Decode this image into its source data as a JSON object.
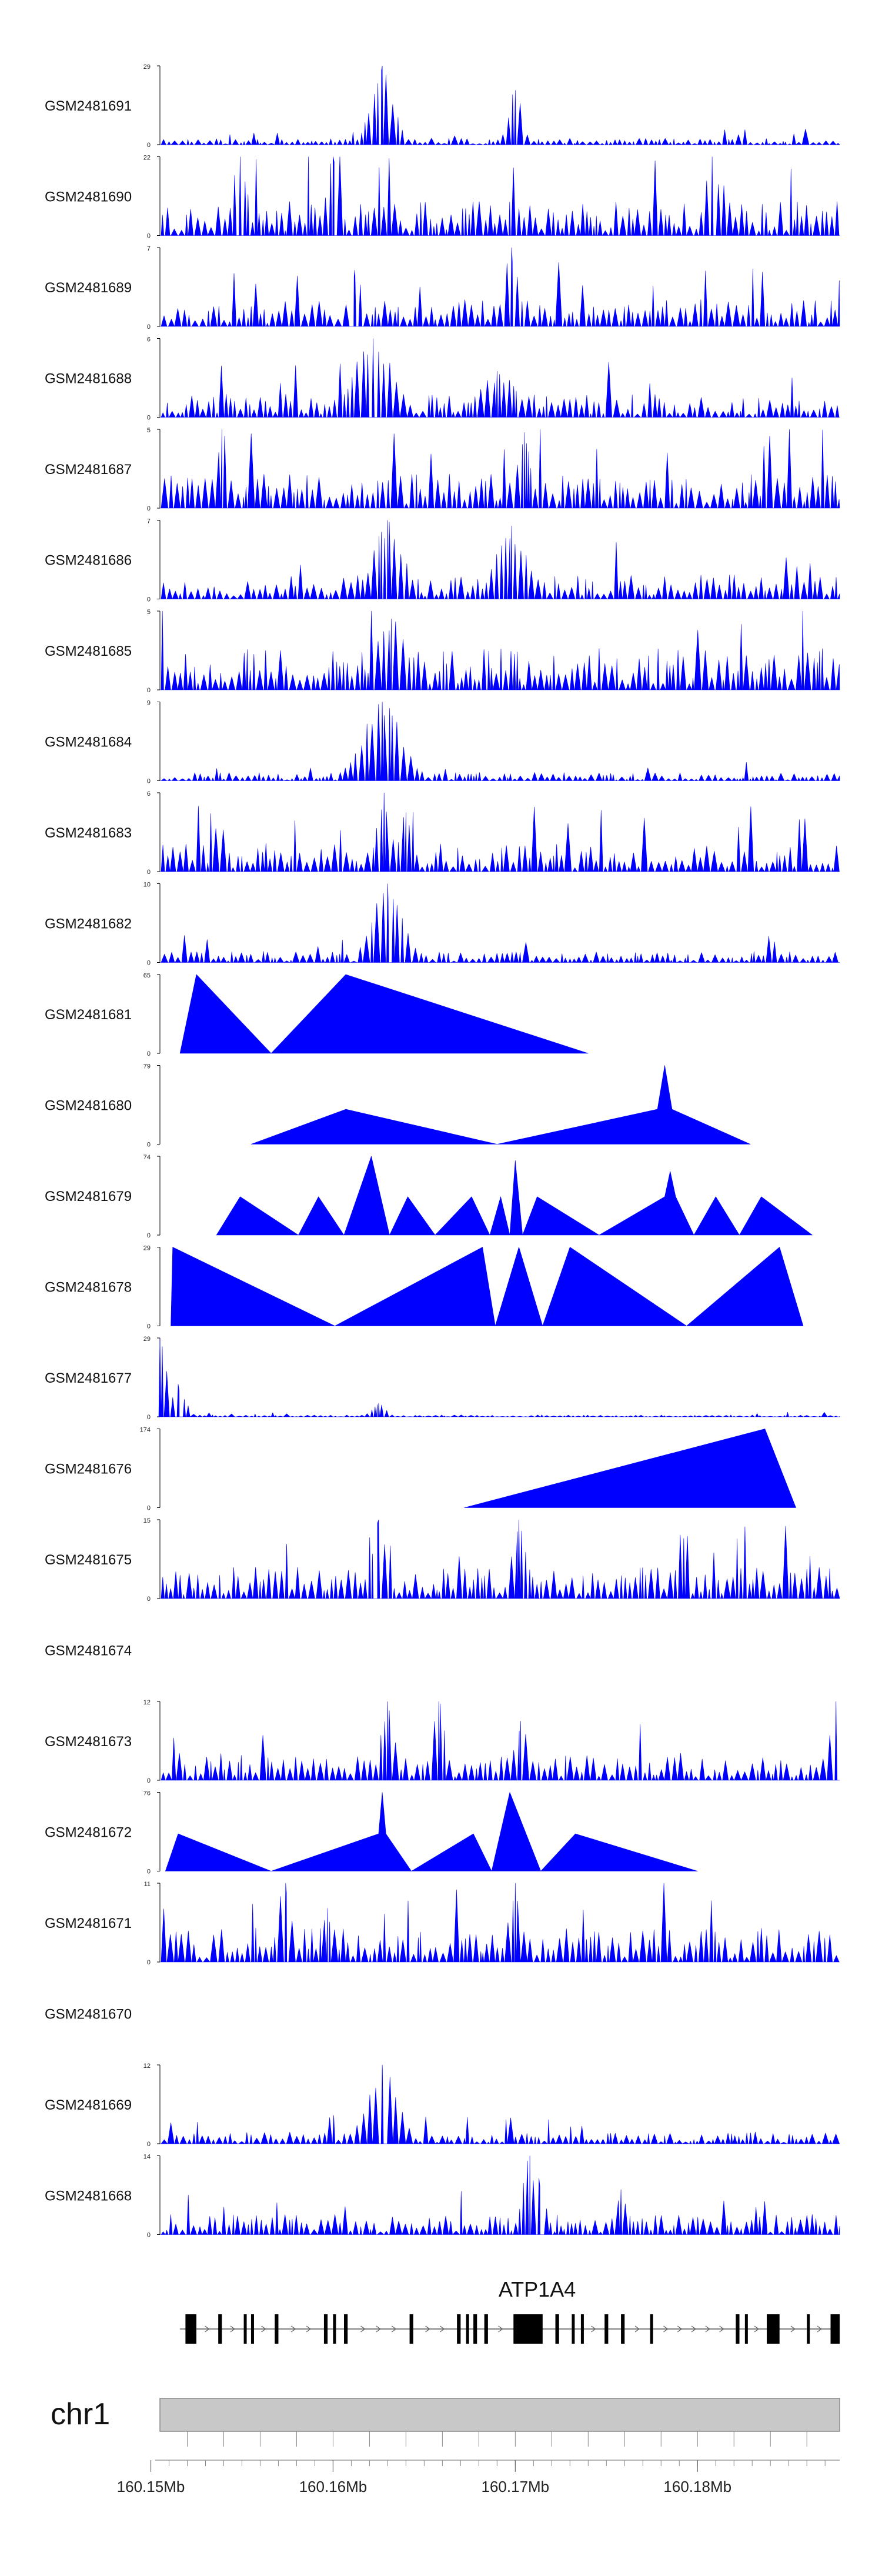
{
  "chart_data": {
    "type": "area",
    "title": "",
    "chromosome": "chr1",
    "x_range": [
      160.1505,
      160.1878
    ],
    "x_unit": "Mb",
    "x_ticks": [
      {
        "value": 160.15,
        "label": "160.15Mb"
      },
      {
        "value": 160.16,
        "label": "160.16Mb"
      },
      {
        "value": 160.17,
        "label": "160.17Mb"
      },
      {
        "value": 160.18,
        "label": "160.18Mb"
      }
    ],
    "track_color": "#0000ff",
    "gene": {
      "name": "ATP1A4",
      "strand": "+",
      "start": 160.1516,
      "end": 160.1878,
      "exons": [
        [
          160.1519,
          160.1525
        ],
        [
          160.1537,
          160.1539
        ],
        [
          160.1551,
          160.1552
        ],
        [
          160.1555,
          160.1556
        ],
        [
          160.1568,
          160.157
        ],
        [
          160.1595,
          160.1597
        ],
        [
          160.16,
          160.1601
        ],
        [
          160.1606,
          160.1608
        ],
        [
          160.1642,
          160.1644
        ],
        [
          160.1668,
          160.167
        ],
        [
          160.1673,
          160.1674
        ],
        [
          160.1677,
          160.1679
        ],
        [
          160.1683,
          160.1685
        ],
        [
          160.1699,
          160.1715
        ],
        [
          160.1722,
          160.1724
        ],
        [
          160.1731,
          160.1732
        ],
        [
          160.1736,
          160.1737
        ],
        [
          160.1749,
          160.1751
        ],
        [
          160.1758,
          160.176
        ],
        [
          160.1774,
          160.1775
        ],
        [
          160.1821,
          160.1823
        ],
        [
          160.1826,
          160.1827
        ],
        [
          160.1838,
          160.1845
        ],
        [
          160.186,
          160.1861
        ],
        [
          160.1873,
          160.1878
        ]
      ]
    },
    "tracks": [
      {
        "name": "GSM2481691",
        "ymax": 29,
        "style": "dense",
        "base": 2,
        "peaks": [
          [
            160.1627,
            29,
            2
          ],
          [
            160.17,
            20,
            1
          ]
        ],
        "seed": 1
      },
      {
        "name": "GSM2481690",
        "ymax": 22,
        "style": "dense",
        "base": 8,
        "peaks": [
          [
            160.1549,
            22,
            1
          ],
          [
            160.16,
            22,
            1
          ],
          [
            160.1808,
            22,
            1
          ]
        ],
        "seed": 2
      },
      {
        "name": "GSM2481689",
        "ymax": 7,
        "style": "dense",
        "base": 2,
        "peaks": [
          [
            160.1698,
            7,
            1
          ],
          [
            160.1612,
            5,
            1
          ]
        ],
        "seed": 3
      },
      {
        "name": "GSM2481688",
        "ymax": 6,
        "style": "dense",
        "base": 1.5,
        "peaks": [
          [
            160.1622,
            6,
            4
          ],
          [
            160.169,
            3.5,
            4
          ]
        ],
        "seed": 4
      },
      {
        "name": "GSM2481687",
        "ymax": 5,
        "style": "dense",
        "base": 1.8,
        "peaks": [
          [
            160.1539,
            5,
            1
          ],
          [
            160.1705,
            4.8,
            1
          ]
        ],
        "seed": 5
      },
      {
        "name": "GSM2481686",
        "ymax": 7,
        "style": "dense",
        "base": 1.8,
        "peaks": [
          [
            160.163,
            7,
            3
          ],
          [
            160.1698,
            6.5,
            3
          ]
        ],
        "seed": 6
      },
      {
        "name": "GSM2481685",
        "ymax": 5,
        "style": "dense",
        "base": 2.2,
        "peaks": [
          [
            160.1632,
            4.5,
            3
          ]
        ],
        "seed": 7
      },
      {
        "name": "GSM2481684",
        "ymax": 9,
        "style": "dense",
        "base": 0.8,
        "peaks": [
          [
            160.1627,
            9,
            4
          ]
        ],
        "seed": 8
      },
      {
        "name": "GSM2481683",
        "ymax": 6,
        "style": "dense",
        "base": 1.8,
        "peaks": [
          [
            160.1628,
            6,
            1
          ],
          [
            160.164,
            4.5,
            1
          ]
        ],
        "seed": 9
      },
      {
        "name": "GSM2481682",
        "ymax": 10,
        "style": "dense",
        "base": 1.2,
        "peaks": [
          [
            160.163,
            10,
            3
          ]
        ],
        "seed": 10
      },
      {
        "name": "GSM2481681",
        "ymax": 65,
        "style": "sparse",
        "vertices": [
          [
            160.1516,
            0
          ],
          [
            160.1525,
            65
          ],
          [
            160.1566,
            0
          ],
          [
            160.1607,
            65
          ],
          [
            160.174,
            0
          ]
        ]
      },
      {
        "name": "GSM2481680",
        "ymax": 79,
        "style": "sparse",
        "vertices": [
          [
            160.1555,
            0
          ],
          [
            160.1607,
            35
          ],
          [
            160.169,
            0
          ],
          [
            160.1778,
            35
          ],
          [
            160.1782,
            79
          ],
          [
            160.1786,
            35
          ],
          [
            160.1829,
            0
          ]
        ]
      },
      {
        "name": "GSM2481679",
        "ymax": 74,
        "style": "sparse",
        "vertices": [
          [
            160.1536,
            0
          ],
          [
            160.1549,
            36
          ],
          [
            160.1581,
            0
          ],
          [
            160.1592,
            36
          ],
          [
            160.1606,
            0
          ],
          [
            160.1621,
            74
          ],
          [
            160.1631,
            0
          ],
          [
            160.1641,
            36
          ],
          [
            160.1656,
            0
          ],
          [
            160.1676,
            36
          ],
          [
            160.1686,
            0
          ],
          [
            160.1692,
            36
          ],
          [
            160.1697,
            0
          ],
          [
            160.17,
            70
          ],
          [
            160.1704,
            0
          ],
          [
            160.1712,
            36
          ],
          [
            160.1746,
            0
          ],
          [
            160.1782,
            36
          ],
          [
            160.1785,
            60
          ],
          [
            160.1788,
            36
          ],
          [
            160.1798,
            0
          ],
          [
            160.181,
            36
          ],
          [
            160.1823,
            0
          ],
          [
            160.1835,
            36
          ],
          [
            160.1863,
            0
          ]
        ]
      },
      {
        "name": "GSM2481678",
        "ymax": 29,
        "style": "sparse",
        "vertices": [
          [
            160.1511,
            0
          ],
          [
            160.1512,
            29
          ],
          [
            160.1601,
            0
          ],
          [
            160.1682,
            29
          ],
          [
            160.1689,
            0
          ],
          [
            160.1702,
            29
          ],
          [
            160.1715,
            0
          ],
          [
            160.173,
            29
          ],
          [
            160.1794,
            0
          ],
          [
            160.1845,
            29
          ],
          [
            160.1858,
            0
          ]
        ]
      },
      {
        "name": "GSM2481677",
        "ymax": 29,
        "style": "dense",
        "base": 0.6,
        "peaks": [
          [
            160.1505,
            29,
            1
          ],
          [
            160.1515,
            12,
            1
          ],
          [
            160.1625,
            5,
            1
          ]
        ],
        "seed": 17
      },
      {
        "name": "GSM2481676",
        "ymax": 174,
        "style": "sparse",
        "vertices": [
          [
            160.1672,
            0
          ],
          [
            160.1837,
            174
          ],
          [
            160.1854,
            0
          ]
        ]
      },
      {
        "name": "GSM2481675",
        "ymax": 15,
        "style": "dense",
        "base": 5,
        "peaks": [
          [
            160.1625,
            15,
            1
          ],
          [
            160.1702,
            15,
            1
          ]
        ],
        "seed": 19
      },
      {
        "name": "GSM2481674",
        "ymax": null,
        "style": "empty"
      },
      {
        "name": "GSM2481673",
        "ymax": 12,
        "style": "dense",
        "base": 3.5,
        "peaks": [
          [
            160.163,
            12,
            1
          ],
          [
            160.1658,
            12,
            1
          ],
          [
            160.1703,
            9,
            1
          ],
          [
            160.1876,
            12,
            1
          ]
        ],
        "seed": 21
      },
      {
        "name": "GSM2481672",
        "ymax": 76,
        "style": "sparse",
        "vertices": [
          [
            160.1508,
            0
          ],
          [
            160.1515,
            36
          ],
          [
            160.1566,
            0
          ],
          [
            160.1625,
            36
          ],
          [
            160.1627,
            76
          ],
          [
            160.1629,
            36
          ],
          [
            160.1643,
            0
          ],
          [
            160.1677,
            36
          ],
          [
            160.1687,
            0
          ],
          [
            160.1697,
            76
          ],
          [
            160.1714,
            0
          ],
          [
            160.1733,
            36
          ],
          [
            160.18,
            0
          ]
        ]
      },
      {
        "name": "GSM2481671",
        "ymax": 11,
        "style": "dense",
        "base": 4,
        "peaks": [
          [
            160.1574,
            11,
            1
          ],
          [
            160.17,
            11,
            1
          ],
          [
            160.1597,
            7.5,
            1
          ]
        ],
        "seed": 23
      },
      {
        "name": "GSM2481670",
        "ymax": null,
        "style": "empty"
      },
      {
        "name": "GSM2481669",
        "ymax": 12,
        "style": "dense",
        "base": 1.5,
        "peaks": [
          [
            160.1627,
            12,
            3
          ]
        ],
        "seed": 25
      },
      {
        "name": "GSM2481668",
        "ymax": 14,
        "style": "dense",
        "base": 3,
        "peaks": [
          [
            160.1708,
            14,
            1
          ],
          [
            160.1713,
            10,
            1
          ],
          [
            160.1758,
            8,
            1
          ]
        ],
        "seed": 26
      }
    ]
  }
}
